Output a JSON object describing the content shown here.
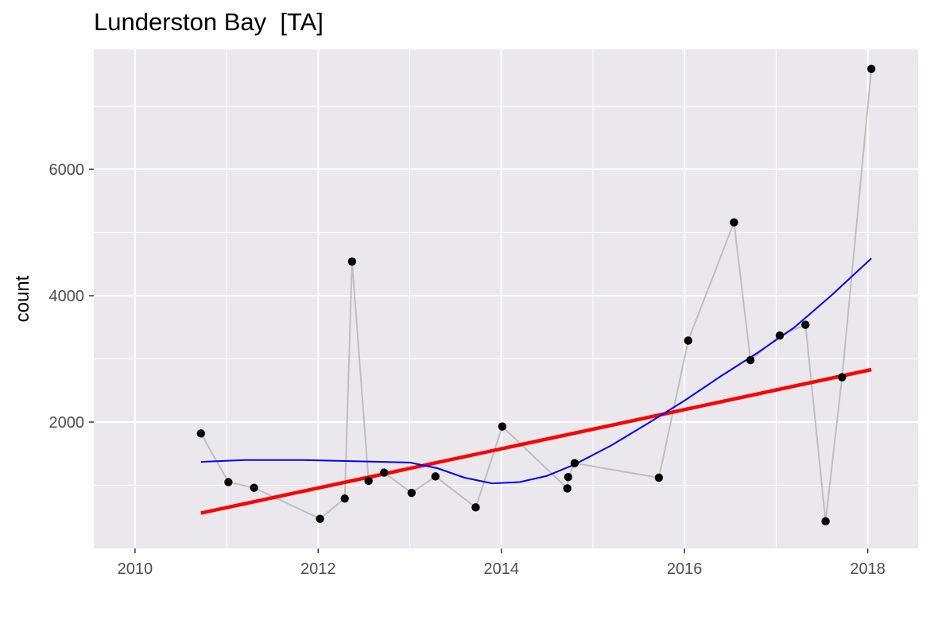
{
  "chart_data": {
    "type": "line",
    "title": "Lunderston Bay  [TA]",
    "xlabel": "",
    "ylabel": "count",
    "xlim": [
      2009.55,
      2018.55
    ],
    "ylim": [
      0,
      7900
    ],
    "x_ticks": [
      2010,
      2012,
      2014,
      2016,
      2018
    ],
    "x_tick_labels": [
      "2010",
      "2012",
      "2014",
      "2016",
      "2018"
    ],
    "y_ticks": [
      2000,
      4000,
      6000
    ],
    "y_tick_labels": [
      "2000",
      "4000",
      "6000"
    ],
    "grid": true,
    "legend": "none",
    "colors": {
      "panel_bg": "#EBE8ED",
      "grid": "#FFFFFF",
      "observed_line": "#BEBEBE",
      "points": "#000000",
      "linear_trend": "#FF0000",
      "smooth_trend": "#0000FF"
    },
    "series": [
      {
        "kind": "observed",
        "x": [
          2010.72,
          2011.02,
          2011.3,
          2012.02,
          2012.29,
          2012.37,
          2012.55,
          2012.72,
          2013.02,
          2013.28,
          2013.72,
          2014.01,
          2014.72,
          2014.73,
          2014.8,
          2015.72,
          2016.04,
          2016.54,
          2016.72,
          2017.04,
          2017.32,
          2017.54,
          2017.72,
          2018.04
        ],
        "y": [
          1820,
          1050,
          960,
          470,
          790,
          4540,
          1070,
          1200,
          880,
          1140,
          650,
          1930,
          950,
          1130,
          1350,
          1120,
          3290,
          5160,
          2980,
          3370,
          3540,
          430,
          2710,
          7590
        ]
      },
      {
        "kind": "linear-trend",
        "x": [
          2010.72,
          2018.04
        ],
        "y": [
          560,
          2830
        ]
      },
      {
        "kind": "smooth-trend",
        "x": [
          2010.72,
          2011.2,
          2011.8,
          2012.4,
          2013.0,
          2013.3,
          2013.6,
          2013.9,
          2014.2,
          2014.5,
          2014.8,
          2015.2,
          2015.6,
          2016.0,
          2016.4,
          2016.8,
          2017.2,
          2017.6,
          2018.04
        ],
        "y": [
          1370,
          1400,
          1400,
          1380,
          1360,
          1270,
          1120,
          1030,
          1050,
          1150,
          1330,
          1630,
          1980,
          2340,
          2730,
          3100,
          3500,
          4000,
          4590
        ]
      }
    ]
  }
}
